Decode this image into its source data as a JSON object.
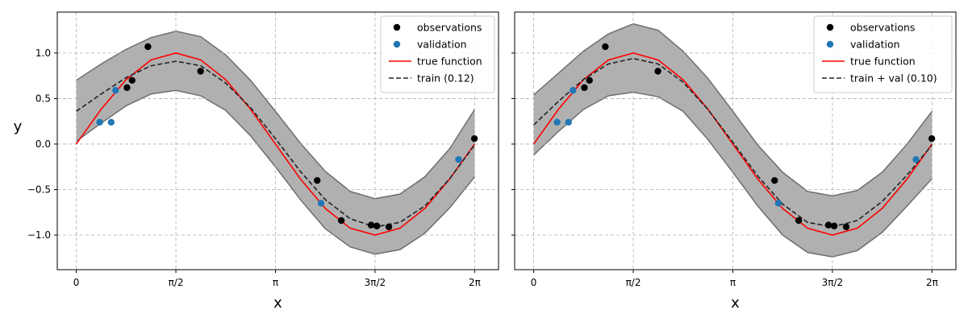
{
  "chart_data": [
    {
      "type": "line",
      "title": "",
      "xlabel": "x",
      "ylabel": "y",
      "xlim": [
        -0.3,
        6.66
      ],
      "ylim": [
        -1.38,
        1.45
      ],
      "x_ticks": [
        0,
        1.5708,
        3.1416,
        4.7124,
        6.2832
      ],
      "x_tick_labels": [
        "0",
        "π/2",
        "π",
        "3π/2",
        "2π"
      ],
      "y_ticks": [
        -1.0,
        -0.5,
        0.0,
        0.5,
        1.0
      ],
      "y_tick_labels": [
        "−1.0",
        "−0.5",
        "0.0",
        "0.5",
        "1.0"
      ],
      "grid": true,
      "legend_position": "top-right",
      "colors": {
        "observations": "#000000",
        "validation": "#1f77b4",
        "true_function": "#ff0000",
        "model": "#222222",
        "band": "#b0b0b0",
        "band_edge": "#6e6e6e"
      },
      "legend": [
        "observations",
        "validation",
        "true function",
        "train (0.12)"
      ],
      "series": [
        {
          "name": "observations",
          "kind": "scatter",
          "x": [
            0.8,
            0.88,
            1.13,
            1.96,
            3.8,
            4.18,
            4.65,
            4.74,
            4.93,
            6.28
          ],
          "y": [
            0.62,
            0.7,
            1.07,
            0.8,
            -0.4,
            -0.84,
            -0.89,
            -0.9,
            -0.91,
            0.06
          ]
        },
        {
          "name": "validation",
          "kind": "scatter",
          "x": [
            0.37,
            0.55,
            0.62,
            3.86,
            6.03
          ],
          "y": [
            0.24,
            0.24,
            0.59,
            -0.65,
            -0.17
          ]
        },
        {
          "name": "true function",
          "kind": "line",
          "x": [
            0,
            0.3927,
            0.7854,
            1.1781,
            1.5708,
            1.9635,
            2.3562,
            2.7489,
            3.1416,
            3.5343,
            3.927,
            4.3197,
            4.7124,
            5.1051,
            5.4978,
            5.8905,
            6.2832
          ],
          "y": [
            0,
            0.383,
            0.707,
            0.924,
            1.0,
            0.924,
            0.707,
            0.383,
            0,
            -0.383,
            -0.707,
            -0.924,
            -1.0,
            -0.924,
            -0.707,
            -0.383,
            0
          ]
        },
        {
          "name": "train (0.12)",
          "kind": "dashed",
          "x": [
            0,
            0.3927,
            0.7854,
            1.1781,
            1.5708,
            1.9635,
            2.3562,
            2.7489,
            3.1416,
            3.5343,
            3.927,
            4.3197,
            4.7124,
            5.1051,
            5.4978,
            5.8905,
            6.2832
          ],
          "y": [
            0.36,
            0.55,
            0.73,
            0.86,
            0.91,
            0.86,
            0.67,
            0.4,
            0.06,
            -0.3,
            -0.61,
            -0.82,
            -0.91,
            -0.86,
            -0.68,
            -0.38,
            -0.01
          ]
        },
        {
          "name": "",
          "kind": "band",
          "x": [
            0,
            0.3927,
            0.7854,
            1.1781,
            1.5708,
            1.9635,
            2.3562,
            2.7489,
            3.1416,
            3.5343,
            3.927,
            4.3197,
            4.7124,
            5.1051,
            5.4978,
            5.8905,
            6.2832
          ],
          "lower": [
            0.03,
            0.23,
            0.42,
            0.55,
            0.59,
            0.53,
            0.37,
            0.09,
            -0.25,
            -0.61,
            -0.93,
            -1.13,
            -1.21,
            -1.16,
            -0.98,
            -0.7,
            -0.36
          ],
          "upper": [
            0.7,
            0.88,
            1.04,
            1.17,
            1.24,
            1.18,
            0.98,
            0.7,
            0.36,
            0.01,
            -0.3,
            -0.52,
            -0.6,
            -0.55,
            -0.36,
            -0.05,
            0.38
          ]
        }
      ]
    },
    {
      "type": "line",
      "title": "",
      "xlabel": "x",
      "ylabel": "",
      "xlim": [
        -0.3,
        6.66
      ],
      "ylim": [
        -1.38,
        1.45
      ],
      "x_ticks": [
        0,
        1.5708,
        3.1416,
        4.7124,
        6.2832
      ],
      "x_tick_labels": [
        "0",
        "π/2",
        "π",
        "3π/2",
        "2π"
      ],
      "y_ticks": [
        -1.0,
        -0.5,
        0.0,
        0.5,
        1.0
      ],
      "y_tick_labels": [
        "",
        "",
        "",
        "",
        ""
      ],
      "grid": true,
      "legend_position": "top-right",
      "colors": {
        "observations": "#000000",
        "validation": "#1f77b4",
        "true_function": "#ff0000",
        "model": "#222222",
        "band": "#b0b0b0",
        "band_edge": "#6e6e6e"
      },
      "legend": [
        "observations",
        "validation",
        "true function",
        "train + val (0.10)"
      ],
      "series": [
        {
          "name": "observations",
          "kind": "scatter",
          "x": [
            0.8,
            0.88,
            1.13,
            1.96,
            3.8,
            4.18,
            4.65,
            4.74,
            4.93,
            6.28
          ],
          "y": [
            0.62,
            0.7,
            1.07,
            0.8,
            -0.4,
            -0.84,
            -0.89,
            -0.9,
            -0.91,
            0.06
          ]
        },
        {
          "name": "validation",
          "kind": "scatter",
          "x": [
            0.37,
            0.55,
            0.62,
            3.86,
            6.03
          ],
          "y": [
            0.24,
            0.24,
            0.59,
            -0.65,
            -0.17
          ]
        },
        {
          "name": "true function",
          "kind": "line",
          "x": [
            0,
            0.3927,
            0.7854,
            1.1781,
            1.5708,
            1.9635,
            2.3562,
            2.7489,
            3.1416,
            3.5343,
            3.927,
            4.3197,
            4.7124,
            5.1051,
            5.4978,
            5.8905,
            6.2832
          ],
          "y": [
            0,
            0.383,
            0.707,
            0.924,
            1.0,
            0.924,
            0.707,
            0.383,
            0,
            -0.383,
            -0.707,
            -0.924,
            -1.0,
            -0.924,
            -0.707,
            -0.383,
            0
          ]
        },
        {
          "name": "train + val (0.10)",
          "kind": "dashed",
          "x": [
            0,
            0.3927,
            0.7854,
            1.1781,
            1.5708,
            1.9635,
            2.3562,
            2.7489,
            3.1416,
            3.5343,
            3.927,
            4.3197,
            4.7124,
            5.1051,
            5.4978,
            5.8905,
            6.2832
          ],
          "y": [
            0.21,
            0.47,
            0.71,
            0.88,
            0.94,
            0.88,
            0.68,
            0.38,
            0.02,
            -0.35,
            -0.66,
            -0.86,
            -0.91,
            -0.84,
            -0.63,
            -0.34,
            -0.01
          ]
        },
        {
          "name": "",
          "kind": "band",
          "x": [
            0,
            0.3927,
            0.7854,
            1.1781,
            1.5708,
            1.9635,
            2.3562,
            2.7489,
            3.1416,
            3.5343,
            3.927,
            4.3197,
            4.7124,
            5.1051,
            5.4978,
            5.8905,
            6.2832
          ],
          "lower": [
            -0.12,
            0.14,
            0.38,
            0.53,
            0.57,
            0.52,
            0.36,
            0.05,
            -0.31,
            -0.68,
            -1.0,
            -1.19,
            -1.24,
            -1.17,
            -0.97,
            -0.68,
            -0.38
          ],
          "upper": [
            0.54,
            0.78,
            1.02,
            1.21,
            1.32,
            1.25,
            1.02,
            0.72,
            0.36,
            -0.01,
            -0.31,
            -0.52,
            -0.57,
            -0.51,
            -0.31,
            0.0,
            0.36
          ]
        }
      ]
    }
  ]
}
